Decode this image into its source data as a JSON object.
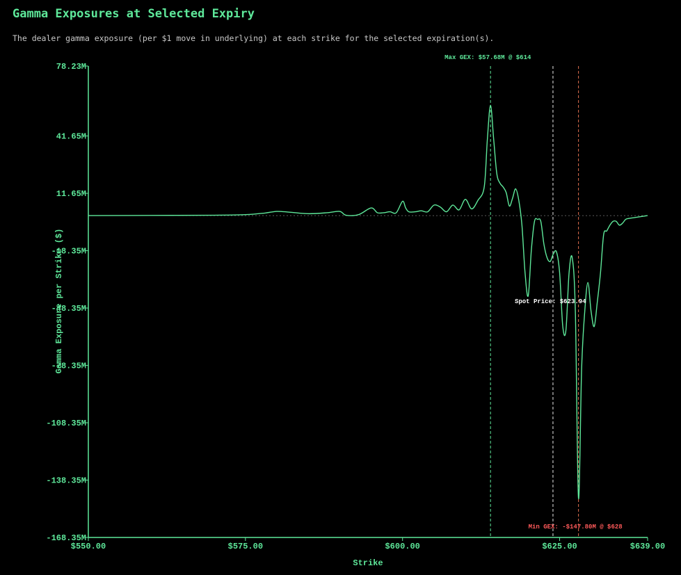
{
  "title": "Gamma Exposures at Selected Expiry",
  "subtitle": "The dealer gamma exposure (per $1 move in underlying) at each strike for the selected expiration(s).",
  "colors": {
    "background": "#000000",
    "line": "#5ee89a",
    "axis": "#5ee89a",
    "spot": "#e8e8e8",
    "min_line": "#e07050",
    "min_text": "#ff5a5a",
    "max_text": "#5ee89a"
  },
  "chart_data": {
    "type": "line",
    "xlabel": "Strike",
    "ylabel": "Gamma Exposure per Strike ($)",
    "xlim": [
      550,
      639
    ],
    "ylim": [
      -168.35,
      78.23
    ],
    "y_unit": "M",
    "x_ticks": [
      550,
      575,
      600,
      625,
      639
    ],
    "x_tick_labels": [
      "$550.00",
      "$575.00",
      "$600.00",
      "$625.00",
      "$639.00"
    ],
    "y_ticks": [
      78.23,
      41.65,
      11.65,
      -18.35,
      -48.35,
      -78.35,
      -108.35,
      -138.35,
      -168.35
    ],
    "y_tick_labels": [
      "78.23M",
      "41.65M",
      "11.65M",
      "-18.35M",
      "-48.35M",
      "-78.35M",
      "-108.35M",
      "-138.35M",
      "-168.35M"
    ],
    "grid": false,
    "zero_line": true,
    "series": [
      {
        "x": [
          550,
          560,
          570,
          575,
          578,
          580,
          582,
          585,
          588,
          590,
          591,
          593,
          595,
          596,
          597,
          598,
          599,
          600,
          600.5,
          601,
          602,
          603,
          604,
          605,
          606,
          607,
          608,
          609,
          610,
          611,
          612,
          613,
          613.5,
          614,
          614.5,
          615,
          615.5,
          616,
          616.5,
          617,
          617.5,
          618,
          618.5,
          619,
          619.5,
          620,
          620.5,
          621,
          621.5,
          622,
          622.5,
          623,
          623.5,
          624,
          624.5,
          625,
          625.5,
          626,
          626.5,
          627,
          627.5,
          628,
          628.5,
          629,
          629.5,
          630,
          630.5,
          631,
          631.5,
          632,
          632.5,
          633,
          633.5,
          634,
          634.5,
          635,
          635.5,
          636,
          637,
          638,
          639
        ],
        "values": [
          0,
          0.1,
          0.2,
          0.5,
          1.3,
          2.2,
          1.8,
          1.0,
          1.5,
          2.2,
          0.2,
          0.5,
          4.0,
          1.5,
          1.5,
          2.0,
          1.5,
          7.5,
          4.0,
          2.0,
          2.0,
          2.5,
          2.0,
          5.5,
          4.5,
          2.0,
          5.5,
          3.0,
          8.5,
          3.5,
          8.0,
          15.0,
          40.0,
          57.68,
          40.0,
          22.0,
          17.0,
          15.0,
          12.0,
          5.0,
          9.0,
          14.0,
          8.0,
          -5.0,
          -30.0,
          -42.0,
          -18.0,
          -3.0,
          -2.0,
          -3.0,
          -15.0,
          -22.0,
          -24.0,
          -20.0,
          -19.0,
          -30.0,
          -58.0,
          -60.0,
          -30.0,
          -22.0,
          -50.0,
          -147.8,
          -80.0,
          -50.0,
          -35.0,
          -50.0,
          -58.0,
          -45.0,
          -30.0,
          -10.0,
          -8.0,
          -5.0,
          -3.0,
          -3.0,
          -5.0,
          -4.0,
          -2.0,
          -1.5,
          -1.0,
          -0.5,
          0
        ]
      }
    ],
    "annotations": {
      "max_label": "Max GEX: $57.68M @ $614",
      "max_strike": 614,
      "spot_label": "Spot Price: $623.94",
      "spot_price": 623.94,
      "min_label": "Min GEX: -$147.80M @ $628",
      "min_strike": 628
    }
  }
}
